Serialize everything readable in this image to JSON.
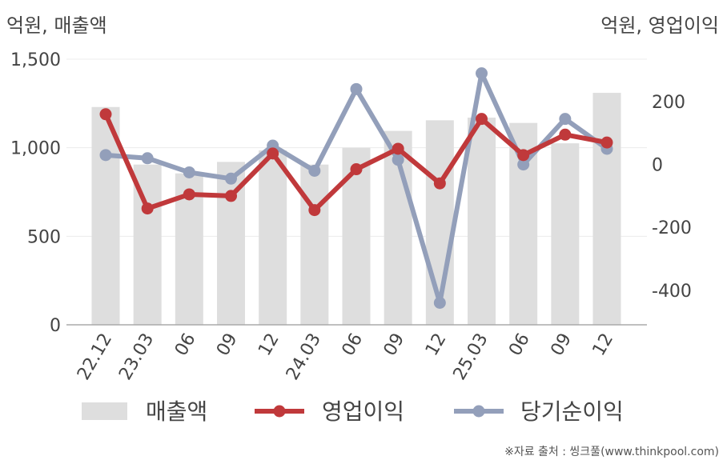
{
  "chart_data": {
    "type": "bar",
    "left_unit": "억원, 매출액",
    "right_unit": "억원, 영업이익",
    "categories": [
      "22.12",
      "23.03",
      "06",
      "09",
      "12",
      "24.03",
      "06",
      "09",
      "12",
      "25.03",
      "06",
      "09",
      "12"
    ],
    "series": [
      {
        "name": "매출액",
        "type": "bar",
        "axis": "left",
        "color": "#dedede",
        "values": [
          1230,
          905,
          855,
          920,
          985,
          905,
          1000,
          1095,
          1155,
          1170,
          1140,
          1025,
          1310
        ]
      },
      {
        "name": "영업이익",
        "type": "line",
        "axis": "right",
        "color": "#c0393b",
        "values": [
          160,
          -140,
          -95,
          -100,
          35,
          -145,
          -15,
          50,
          -60,
          145,
          30,
          95,
          70
        ]
      },
      {
        "name": "당기순이익",
        "type": "line",
        "axis": "right",
        "color": "#939fba",
        "values": [
          30,
          20,
          -25,
          -45,
          60,
          -20,
          240,
          15,
          -440,
          290,
          0,
          145,
          50
        ]
      }
    ],
    "y_left": {
      "min": 0,
      "max": 1500,
      "ticks": [
        0,
        500,
        1000,
        1500
      ],
      "tick_labels": [
        "0",
        "500",
        "1,000",
        "1,500"
      ]
    },
    "y_right": {
      "min": -510,
      "max": 335,
      "ticks": [
        200,
        0,
        -200,
        -400
      ],
      "tick_labels": [
        "200",
        "0",
        "-200",
        "-400"
      ]
    },
    "grid": true,
    "legend_position": "bottom"
  },
  "source": "※자료 출처 : 씽크풀(www.thinkpool.com)"
}
